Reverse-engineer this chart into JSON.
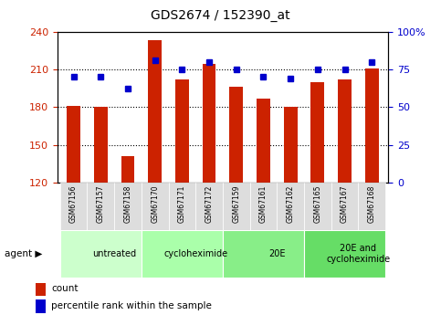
{
  "title": "GDS2674 / 152390_at",
  "samples": [
    "GSM67156",
    "GSM67157",
    "GSM67158",
    "GSM67170",
    "GSM67171",
    "GSM67172",
    "GSM67159",
    "GSM67161",
    "GSM67162",
    "GSM67165",
    "GSM67167",
    "GSM67168"
  ],
  "bar_values": [
    181,
    180,
    141,
    233,
    202,
    214,
    196,
    187,
    180,
    200,
    202,
    211
  ],
  "percentile_values": [
    70,
    70,
    62,
    81,
    75,
    80,
    75,
    70,
    69,
    75,
    75,
    80
  ],
  "bar_color": "#cc2200",
  "dot_color": "#0000cc",
  "bar_bottom": 120,
  "ylim_left": [
    120,
    240
  ],
  "ylim_right": [
    0,
    100
  ],
  "yticks_left": [
    120,
    150,
    180,
    210,
    240
  ],
  "yticks_right": [
    0,
    25,
    50,
    75,
    100
  ],
  "groups": [
    {
      "label": "untreated",
      "start": 0,
      "end": 3,
      "color": "#ccffcc"
    },
    {
      "label": "cycloheximide",
      "start": 3,
      "end": 6,
      "color": "#aaffaa"
    },
    {
      "label": "20E",
      "start": 6,
      "end": 9,
      "color": "#88ee88"
    },
    {
      "label": "20E and\ncycloheximide",
      "start": 9,
      "end": 12,
      "color": "#66dd66"
    }
  ],
  "agent_label": "agent",
  "legend_count_label": "count",
  "legend_percentile_label": "percentile rank within the sample",
  "tick_label_bg": "#dddddd",
  "grid_color": "#000000",
  "bg_color": "#ffffff",
  "plot_bg_color": "#ffffff"
}
